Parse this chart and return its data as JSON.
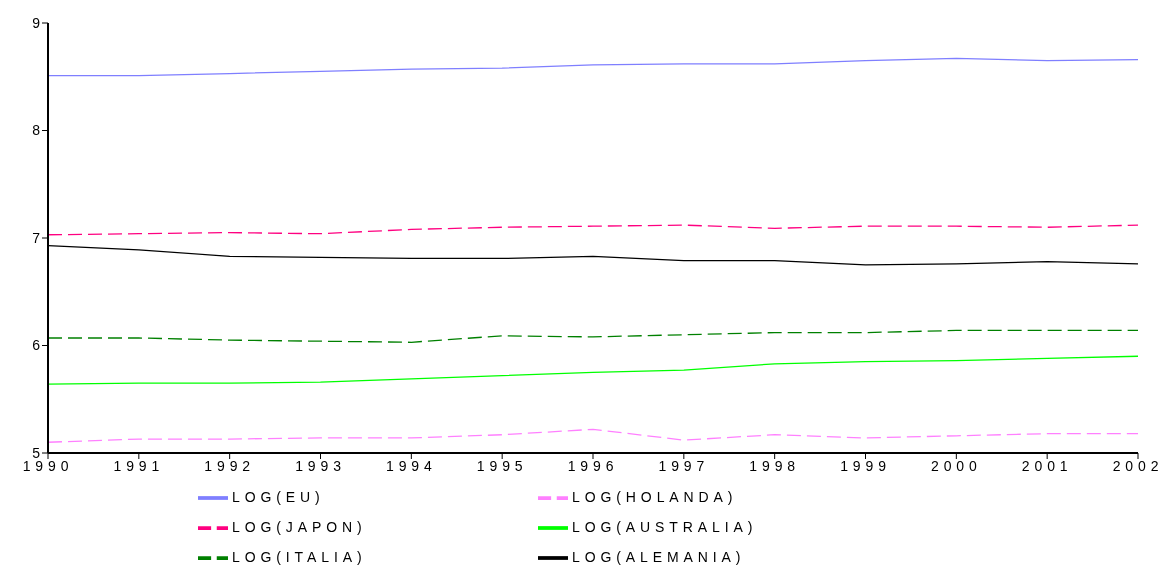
{
  "chart_data": {
    "type": "line",
    "x": [
      1990,
      1991,
      1992,
      1993,
      1994,
      1995,
      1996,
      1997,
      1998,
      1999,
      2000,
      2001,
      2002
    ],
    "xlim": [
      1990,
      2002
    ],
    "xticks": [
      1990,
      1991,
      1992,
      1993,
      1994,
      1995,
      1996,
      1997,
      1998,
      1999,
      2000,
      2001,
      2002
    ],
    "ylim": [
      5,
      9
    ],
    "yticks": [
      5,
      6,
      7,
      8,
      9
    ],
    "grid": false,
    "legend": "bottom",
    "marker": "none",
    "series": [
      {
        "name": "LOG(EU)",
        "color": "#7f7fff",
        "line_style": "solid",
        "values": [
          8.51,
          8.51,
          8.53,
          8.55,
          8.57,
          8.58,
          8.61,
          8.62,
          8.62,
          8.65,
          8.67,
          8.65,
          8.66
        ]
      },
      {
        "name": "LOG(HOLANDA)",
        "color": "#ff80ff",
        "line_style": "dashed",
        "values": [
          5.1,
          5.13,
          5.13,
          5.14,
          5.14,
          5.17,
          5.22,
          5.12,
          5.17,
          5.14,
          5.16,
          5.18,
          5.18
        ]
      },
      {
        "name": "LOG(JAPON)",
        "color": "#ff0080",
        "line_style": "dashed",
        "values": [
          7.03,
          7.04,
          7.05,
          7.04,
          7.08,
          7.1,
          7.11,
          7.12,
          7.09,
          7.11,
          7.11,
          7.1,
          7.12
        ]
      },
      {
        "name": "LOG(AUSTRALIA)",
        "color": "#00ff00",
        "line_style": "solid",
        "values": [
          5.64,
          5.65,
          5.65,
          5.66,
          5.69,
          5.72,
          5.75,
          5.77,
          5.83,
          5.85,
          5.86,
          5.88,
          5.9
        ]
      },
      {
        "name": "LOG(ITALIA)",
        "color": "#008000",
        "line_style": "dashed",
        "values": [
          6.07,
          6.07,
          6.05,
          6.04,
          6.03,
          6.09,
          6.08,
          6.1,
          6.12,
          6.12,
          6.14,
          6.14,
          6.14
        ]
      },
      {
        "name": "LOG(ALEMANIA)",
        "color": "#000000",
        "line_style": "solid",
        "values": [
          6.93,
          6.89,
          6.83,
          6.82,
          6.81,
          6.81,
          6.83,
          6.79,
          6.79,
          6.75,
          6.76,
          6.78,
          6.76
        ]
      }
    ]
  }
}
